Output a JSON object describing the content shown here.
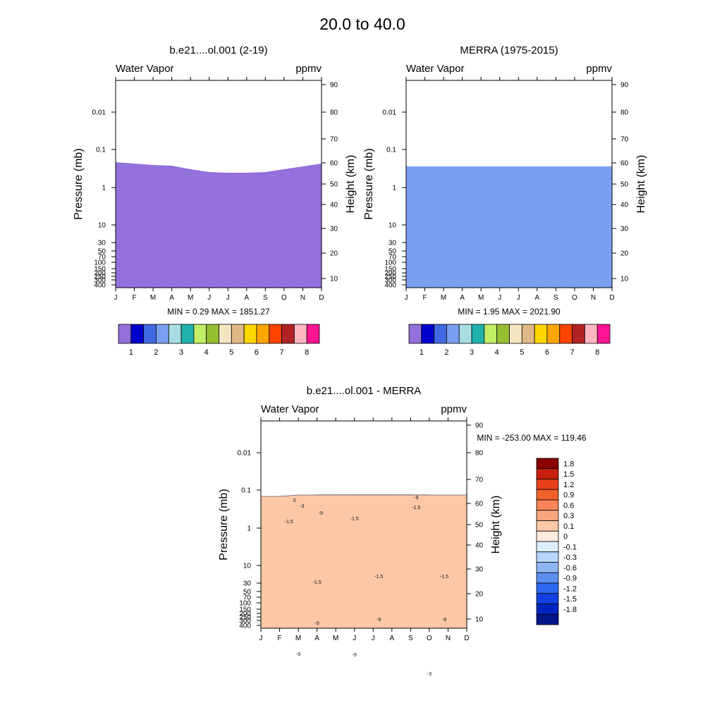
{
  "figure_title": "20.0 to  40.0",
  "chart_data": [
    {
      "type": "contour",
      "title": "b.e21....ol.001 (2-19)",
      "left_label": "Water Vapor",
      "right_label": "ppmv",
      "ylabel": "Pressure (mb)",
      "y2label": "Height (km)",
      "x_ticks": [
        "J",
        "F",
        "M",
        "A",
        "M",
        "J",
        "J",
        "A",
        "S",
        "O",
        "N",
        "D"
      ],
      "pressure_ticks": [
        "0.01",
        "0.1",
        "1",
        "10",
        "30",
        "50",
        "70",
        "100",
        "150",
        "200",
        "250",
        "300",
        "400"
      ],
      "height_ticks": [
        "90",
        "80",
        "70",
        "60",
        "50",
        "40",
        "30",
        "20",
        "10"
      ],
      "stat_text": "MIN =    0.29  MAX = 1851.27",
      "colorbar_labels": [
        "1",
        "2",
        "3",
        "4",
        "5",
        "6",
        "7",
        "8"
      ],
      "colorbar_colors": [
        "#9370DB",
        "#0000CD",
        "#4169E1",
        "#7B9FF0",
        "#A8DDE2",
        "#20B2AA",
        "#C0EE64",
        "#96BE32",
        "#F5E6C3",
        "#DEB887",
        "#FFD700",
        "#FFA500",
        "#FF4500",
        "#B22222",
        "#FFB6C1",
        "#FF1493"
      ],
      "fill_bands": [
        {
          "color": "#FF1493",
          "edge": [
            175,
            175,
            173,
            173,
            175,
            178,
            178,
            178,
            178,
            176,
            175,
            175
          ]
        },
        {
          "color": "#FFD700",
          "edge": [
            172,
            172,
            170,
            170,
            172,
            174,
            174,
            174,
            174,
            173,
            172,
            172
          ]
        },
        {
          "color": "#C0EE64",
          "edge": [
            165,
            165,
            164,
            164,
            164,
            165,
            166,
            166,
            166,
            165,
            165,
            165
          ]
        },
        {
          "color": "#20B2AA",
          "edge": [
            120,
            120,
            119,
            118,
            117,
            116,
            115,
            140,
            155,
            165,
            165,
            165
          ]
        },
        {
          "color": "#C0EE64",
          "edge": [
            105,
            105,
            104,
            104,
            103,
            103,
            103,
            103,
            103,
            104,
            104,
            104
          ]
        },
        {
          "color": "#96BE32",
          "edge": [
            61,
            57,
            57,
            56,
            55,
            54,
            54,
            53,
            54,
            55,
            58,
            61
          ]
        },
        {
          "color": "#F5E6C3",
          "edge": [
            -34,
            -33,
            -31,
            -30,
            -20,
            -9,
            -2,
            -1,
            -5,
            -18,
            -29,
            -30
          ]
        },
        {
          "color": "#96BE32",
          "edge": [
            -51,
            -50,
            -48,
            -47,
            -37,
            -29,
            -24,
            -23,
            -27,
            -37,
            -45,
            -49
          ]
        },
        {
          "color": "#C0EE64",
          "edge": [
            -61,
            -59,
            -57,
            -56,
            -46,
            -38,
            -34,
            -34,
            -37,
            -47,
            -55,
            -59
          ]
        },
        {
          "color": "#20B2AA",
          "edge": [
            -72,
            -70,
            -68,
            -67,
            -58,
            -51,
            -47,
            -47,
            -50,
            -59,
            -66,
            -70
          ]
        },
        {
          "color": "#A8DDE2",
          "edge": [
            -77,
            -75,
            -73,
            -72,
            -64,
            -57,
            -54,
            -54,
            -57,
            -65,
            -71,
            -75
          ]
        },
        {
          "color": "#7B9FF0",
          "edge": [
            -83,
            -81,
            -79,
            -78,
            -71,
            -65,
            -62,
            -62,
            -65,
            -72,
            -77,
            -81
          ]
        },
        {
          "color": "#4169E1",
          "edge": [
            -89,
            -87,
            -85,
            -84,
            -77,
            -72,
            -70,
            -70,
            -72,
            -79,
            -83,
            -87
          ]
        },
        {
          "color": "#0000CD",
          "edge": [
            -95,
            -93,
            -91,
            -90,
            -84,
            -80,
            -79,
            -79,
            -80,
            -85,
            -89,
            -93
          ]
        },
        {
          "color": "#9370DB",
          "edge": [
            -104,
            -102,
            -100,
            -99,
            -94,
            -90,
            -89,
            -89,
            -90,
            -94,
            -98,
            -102
          ]
        }
      ]
    },
    {
      "type": "contour",
      "title": "MERRA (1975-2015)",
      "left_label": "Water Vapor",
      "right_label": "ppmv",
      "ylabel": "Pressure (mb)",
      "y2label": "Height (km)",
      "x_ticks": [
        "J",
        "F",
        "M",
        "A",
        "M",
        "J",
        "J",
        "A",
        "S",
        "O",
        "N",
        "D"
      ],
      "pressure_ticks": [
        "0.01",
        "0.1",
        "1",
        "10",
        "30",
        "50",
        "70",
        "100",
        "150",
        "200",
        "250",
        "300",
        "400"
      ],
      "height_ticks": [
        "90",
        "80",
        "70",
        "60",
        "50",
        "40",
        "30",
        "20",
        "10"
      ],
      "stat_text": "MIN =    1.95  MAX = 2021.90",
      "colorbar_labels": [
        "1",
        "2",
        "3",
        "4",
        "5",
        "6",
        "7",
        "8"
      ],
      "colorbar_colors": [
        "#9370DB",
        "#0000CD",
        "#4169E1",
        "#7B9FF0",
        "#A8DDE2",
        "#20B2AA",
        "#C0EE64",
        "#96BE32",
        "#F5E6C3",
        "#DEB887",
        "#FFD700",
        "#FFA500",
        "#FF4500",
        "#B22222",
        "#FFB6C1",
        "#FF1493"
      ],
      "fill_bands": [
        {
          "color": "#FF1493",
          "edge": [
            176,
            176,
            174,
            174,
            176,
            178,
            178,
            178,
            178,
            176,
            176,
            176
          ]
        },
        {
          "color": "#FFD700",
          "edge": [
            173,
            173,
            171,
            171,
            173,
            175,
            175,
            175,
            175,
            174,
            173,
            173
          ]
        },
        {
          "color": "#C0EE64",
          "edge": [
            168,
            168,
            167,
            167,
            167,
            168,
            168,
            168,
            168,
            167,
            167,
            167
          ]
        },
        {
          "color": "#96BE32",
          "edge": [
            130,
            130,
            129,
            128,
            127,
            126,
            126,
            126,
            127,
            128,
            129,
            130
          ]
        },
        {
          "color": "#F5E6C3",
          "edge": [
            94,
            93,
            92,
            91,
            90,
            89,
            88,
            88,
            89,
            90,
            91,
            92
          ]
        },
        {
          "color": "#DEB887",
          "edge": [
            80,
            79,
            78,
            77,
            76,
            75,
            74,
            74,
            75,
            76,
            77,
            79
          ]
        },
        {
          "color": "#FFD700",
          "edge": [
            62,
            61,
            59,
            58,
            56,
            54,
            53,
            53,
            54,
            56,
            58,
            60
          ]
        },
        {
          "color": "#FFA500",
          "edge": [
            40,
            38,
            36,
            35,
            32,
            28,
            26,
            26,
            28,
            32,
            35,
            38
          ]
        },
        {
          "color": "#FF4500",
          "edge": [
            0,
            -3,
            -5,
            -8,
            -18,
            -36,
            -40,
            -40,
            -36,
            -25,
            -12,
            -4
          ]
        },
        {
          "color": "#FFA500",
          "edge": [
            -34,
            -36,
            -38,
            -40,
            -46,
            -58,
            -62,
            -62,
            -58,
            -52,
            -45,
            -38
          ]
        },
        {
          "color": "#FFD700",
          "edge": [
            -50,
            -52,
            -54,
            -56,
            -62,
            -78,
            -84,
            -84,
            -78,
            -68,
            -60,
            -54
          ]
        },
        {
          "color": "#F5E6C3",
          "edge": [
            -62,
            -64,
            -66,
            -68,
            -74,
            -84,
            -90,
            -90,
            -86,
            -78,
            -70,
            -66
          ]
        },
        {
          "color": "#DEB887",
          "edge": [
            -72,
            -74,
            -76,
            -78,
            -84,
            -90,
            -98,
            -98,
            -94,
            -86,
            -78,
            -74
          ]
        },
        {
          "color": "#C0EE64",
          "edge": [
            -82,
            -83,
            -84,
            -86,
            -90,
            -98,
            -98,
            -98,
            -98,
            -92,
            -86,
            -84
          ]
        },
        {
          "color": "#20B2AA",
          "edge": [
            -88,
            -89,
            -90,
            -92,
            -94,
            -98,
            -98,
            -98,
            -98,
            -95,
            -92,
            -89
          ]
        },
        {
          "color": "#7B9FF0",
          "edge": [
            -98,
            -98,
            -98,
            -98,
            -98,
            -98,
            -98,
            -98,
            -98,
            -98,
            -98,
            -98
          ]
        }
      ]
    },
    {
      "type": "contour",
      "title": "b.e21....ol.001 - MERRA",
      "left_label": "Water Vapor",
      "right_label": "ppmv",
      "ylabel": "Pressure (mb)",
      "y2label": "Height (km)",
      "x_ticks": [
        "J",
        "F",
        "M",
        "A",
        "M",
        "J",
        "J",
        "A",
        "S",
        "O",
        "N",
        "D"
      ],
      "pressure_ticks": [
        "0.01",
        "0.1",
        "1",
        "10",
        "30",
        "50",
        "70",
        "100",
        "150",
        "200",
        "250",
        "300",
        "400"
      ],
      "height_ticks": [
        "90",
        "80",
        "70",
        "60",
        "50",
        "40",
        "30",
        "20",
        "10"
      ],
      "stat_text": "MIN = -253.00  MAX = 119.46",
      "colorbar_labels": [
        "1.8",
        "1.5",
        "1.2",
        "0.9",
        "0.6",
        "0.3",
        "0.1",
        "0",
        "-0.1",
        "-0.3",
        "-0.6",
        "-0.9",
        "-1.2",
        "-1.5",
        "-1.8"
      ],
      "colorbar_colors": [
        "#8B0000",
        "#C8200E",
        "#E8401A",
        "#F2602A",
        "#F8845A",
        "#FAA57E",
        "#FCC8A8",
        "#FFEBDD",
        "#DDEEFF",
        "#B7D4FA",
        "#8EB6F5",
        "#5C8EEF",
        "#2E66F0",
        "#1240E0",
        "#0024C0",
        "#001689"
      ],
      "fill_bands": [
        {
          "color": "#8B0000",
          "edge": [
            175,
            175,
            175,
            175,
            175,
            175,
            175,
            175,
            175,
            175,
            175,
            175
          ]
        },
        {
          "color": "#001689",
          "edge": [
            167,
            168,
            170,
            172,
            172,
            172,
            172,
            172,
            172,
            170,
            170,
            170
          ]
        },
        {
          "color": "#0024C0",
          "edge": [
            165,
            165,
            164,
            164,
            164,
            164,
            164,
            164,
            164,
            164,
            163,
            163
          ]
        },
        {
          "color": "#1240E0",
          "edge": [
            148,
            148,
            146,
            145,
            145,
            145,
            145,
            145,
            145,
            145,
            145,
            145
          ]
        },
        {
          "color": "#5C8EEF",
          "edge": [
            134,
            133,
            132,
            131,
            130,
            129,
            128,
            128,
            129,
            130,
            132,
            134
          ]
        },
        {
          "color": "#8EB6F5",
          "edge": [
            125,
            124,
            123,
            122,
            121,
            120,
            119,
            119,
            120,
            121,
            122,
            124
          ]
        },
        {
          "color": "#5C8EEF",
          "edge": [
            110,
            110,
            109,
            108,
            108,
            108,
            108,
            108,
            108,
            108,
            109,
            110
          ]
        },
        {
          "color": "#2E66F0",
          "edge": [
            80,
            80,
            79,
            78,
            77,
            76,
            75,
            75,
            76,
            77,
            78,
            80
          ]
        },
        {
          "color": "#1240E0",
          "edge": [
            60,
            60,
            59,
            58,
            57,
            55,
            54,
            54,
            55,
            57,
            58,
            60
          ]
        },
        {
          "color": "#0024C0",
          "edge": [
            -48,
            -50,
            -52,
            -54,
            -56,
            -58,
            -58,
            -58,
            -56,
            -54,
            -52,
            -50
          ]
        },
        {
          "color": "#1240E0",
          "edge": [
            -60,
            -63,
            -68,
            -74,
            -80,
            -85,
            -85,
            -85,
            -82,
            -76,
            -70,
            -64
          ]
        },
        {
          "color": "#2E66F0",
          "edge": [
            -70,
            -74,
            -80,
            -86,
            -92,
            -98,
            -98,
            -98,
            -94,
            -86,
            -78,
            -72
          ]
        },
        {
          "color": "#5C8EEF",
          "edge": [
            -78,
            -82,
            -88,
            -94,
            -98,
            -98,
            -98,
            -98,
            -98,
            -92,
            -84,
            -80
          ]
        },
        {
          "color": "#8EB6F5",
          "edge": [
            -84,
            -88,
            -94,
            -98,
            -98,
            -98,
            -98,
            -98,
            -98,
            -96,
            -90,
            -86
          ]
        },
        {
          "color": "#B7D4FA",
          "edge": [
            -90,
            -93,
            -97,
            -98,
            -98,
            -98,
            -98,
            -98,
            -98,
            -98,
            -95,
            -92
          ]
        },
        {
          "color": "#FCC8A8",
          "edge": [
            -96,
            -96,
            -98,
            -98,
            -98,
            -98,
            -98,
            -98,
            -98,
            -98,
            -98,
            -98
          ]
        }
      ],
      "contour_labels": [
        {
          "text": "0",
          "month": 1.8,
          "level": -88
        },
        {
          "text": "-3",
          "month": 2.2,
          "level": -80
        },
        {
          "text": "-9",
          "month": 3.2,
          "level": -70
        },
        {
          "text": "-9",
          "month": 8.3,
          "level": -92
        },
        {
          "text": "-1.5",
          "month": 8.3,
          "level": -78
        },
        {
          "text": "-1.5",
          "month": 1.5,
          "level": -58
        },
        {
          "text": "-1.5",
          "month": 5.0,
          "level": -62
        },
        {
          "text": "-1.5",
          "month": 3.0,
          "level": 28
        },
        {
          "text": "-1.5",
          "month": 6.3,
          "level": 20
        },
        {
          "text": "-1.5",
          "month": 9.8,
          "level": 20
        },
        {
          "text": "-9",
          "month": 3.0,
          "level": 86
        },
        {
          "text": "-9",
          "month": 6.3,
          "level": 81
        },
        {
          "text": "-9",
          "month": 9.8,
          "level": 81
        },
        {
          "text": "-9",
          "month": 2.0,
          "level": 130
        },
        {
          "text": "-9",
          "month": 5.0,
          "level": 131
        },
        {
          "text": "-3",
          "month": 9.0,
          "level": 158
        }
      ]
    }
  ]
}
